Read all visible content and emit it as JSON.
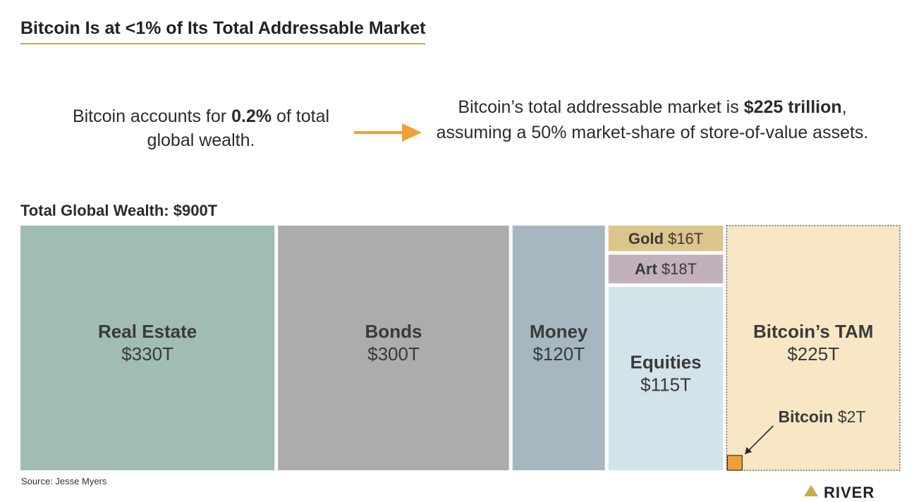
{
  "header": {
    "title": "Bitcoin Is at <1% of Its Total Addressable Market"
  },
  "lead": {
    "left_pre": "Bitcoin accounts for ",
    "left_bold": "0.2%",
    "left_post": " of total global wealth.",
    "right_pre": "Bitcoin’s total addressable market is ",
    "right_bold": "$225 trillion",
    "right_post": ", assuming a 50% market-share of store-of-value assets."
  },
  "footer": {
    "source": "Source: Jesse Myers",
    "brand": "RIVER"
  },
  "chart_data": {
    "type": "treemap",
    "title": "Total Global Wealth: $900T",
    "units": "trillions USD",
    "total": 900,
    "categories": [
      {
        "name": "Real Estate",
        "value_label": "$330T",
        "value": 330,
        "color": "#9fbdb4"
      },
      {
        "name": "Bonds",
        "value_label": "$300T",
        "value": 300,
        "color": "#acacac"
      },
      {
        "name": "Money",
        "value_label": "$120T",
        "value": 120,
        "color": "#a5b8c2"
      },
      {
        "name": "Gold",
        "value_label": "$16T",
        "value": 16,
        "color": "#dcc58a"
      },
      {
        "name": "Art",
        "value_label": "$18T",
        "value": 18,
        "color": "#c3b0bd"
      },
      {
        "name": "Equities",
        "value_label": "$115T",
        "value": 115,
        "color": "#d3e3ea"
      },
      {
        "name": "Bitcoin’s TAM",
        "value_label": "$225T",
        "value": 225,
        "color": "#f8e6c4"
      }
    ],
    "highlight": {
      "name": "Bitcoin",
      "value_label": "$2T",
      "value": 2,
      "color": "#f1a035"
    },
    "accent_color": "#f1a035",
    "rule_color": "#c9a94f"
  }
}
